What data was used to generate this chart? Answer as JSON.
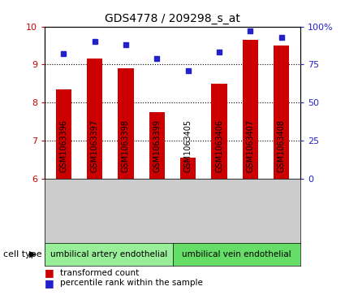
{
  "title": "GDS4778 / 209298_s_at",
  "samples": [
    "GSM1063396",
    "GSM1063397",
    "GSM1063398",
    "GSM1063399",
    "GSM1063405",
    "GSM1063406",
    "GSM1063407",
    "GSM1063408"
  ],
  "red_values": [
    8.35,
    9.15,
    8.9,
    7.75,
    6.55,
    8.5,
    9.65,
    9.5
  ],
  "blue_values": [
    82,
    90,
    88,
    79,
    71,
    83,
    97,
    93
  ],
  "ylim_left": [
    6,
    10
  ],
  "ylim_right": [
    0,
    100
  ],
  "yticks_left": [
    6,
    7,
    8,
    9,
    10
  ],
  "yticks_right": [
    0,
    25,
    50,
    75,
    100
  ],
  "ytick_labels_right": [
    "0",
    "25",
    "50",
    "75",
    "100%"
  ],
  "bar_color": "#cc0000",
  "dot_color": "#2222cc",
  "artery_color": "#99ee99",
  "vein_color": "#66dd66",
  "cell_type_label": "cell type",
  "artery_label": "umbilical artery endothelial",
  "vein_label": "umbilical vein endothelial",
  "legend_red": "transformed count",
  "legend_blue": "percentile rank within the sample",
  "bar_width": 0.5,
  "left_tick_color": "#cc0000",
  "right_tick_color": "#2222cc",
  "sample_bg_color": "#cccccc",
  "grid_yticks": [
    7,
    8,
    9
  ]
}
